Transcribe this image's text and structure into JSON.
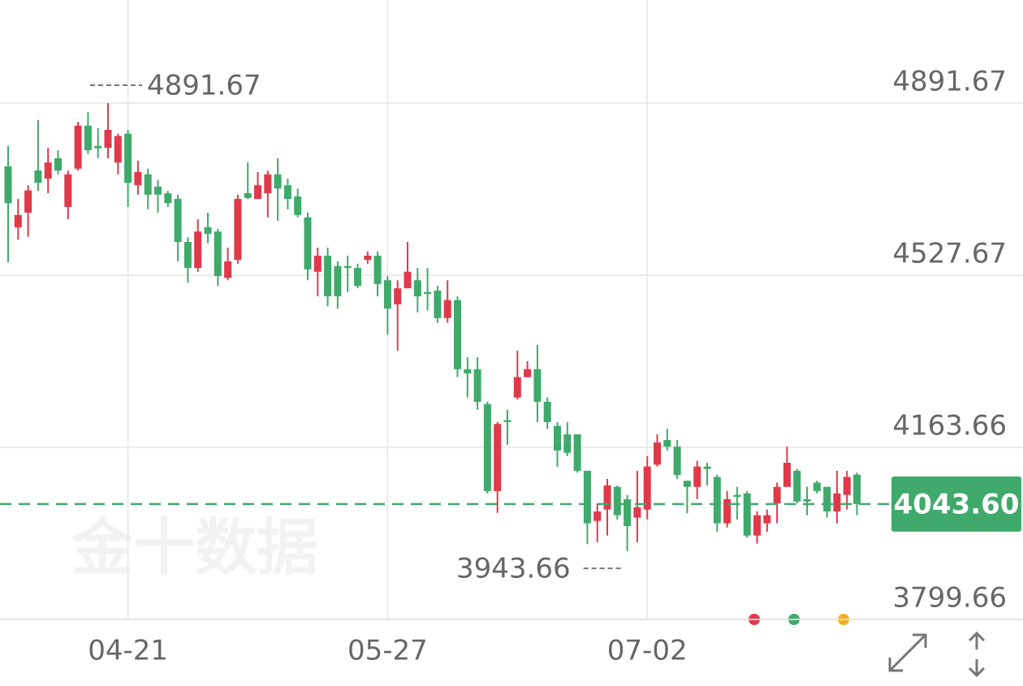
{
  "chart_data": {
    "type": "candlestick",
    "watermark": "金十数据",
    "categories": [
      null,
      null,
      null,
      null,
      null,
      null,
      null,
      null,
      null,
      null,
      null,
      null,
      "04-21",
      null,
      null,
      null,
      null,
      null,
      null,
      null,
      null,
      null,
      null,
      null,
      null,
      null,
      null,
      null,
      null,
      null,
      null,
      null,
      null,
      null,
      null,
      null,
      null,
      null,
      "05-27",
      null,
      null,
      null,
      null,
      null,
      null,
      null,
      null,
      null,
      null,
      null,
      null,
      null,
      null,
      null,
      null,
      null,
      null,
      null,
      null,
      null,
      null,
      null,
      null,
      null,
      "07-02",
      null,
      null,
      null,
      null,
      null,
      null,
      null,
      null,
      null,
      null,
      null,
      null,
      null,
      null,
      null,
      null,
      null,
      null,
      null,
      null,
      null
    ],
    "open": [
      4758,
      4629,
      4660,
      4749,
      4732,
      4775,
      4672,
      4753,
      4844,
      4801,
      4797,
      4766,
      4827,
      4718,
      4741,
      4715,
      4701,
      4689,
      4598,
      4543,
      4629,
      4620,
      4522,
      4560,
      4701,
      4689,
      4701,
      4741,
      4718,
      4694,
      4650,
      4535,
      4569,
      4547,
      4547,
      4543,
      4560,
      4569,
      4517,
      4466,
      4500,
      4517,
      4492,
      4495,
      4437,
      4475,
      4329,
      4329,
      4255,
      4071,
      4221,
      4269,
      4312,
      4329,
      4260,
      4209,
      4191,
      4191,
      4114,
      4008,
      4032,
      4080,
      4054,
      4015,
      4032,
      4127,
      4179,
      4165,
      4093,
      4080,
      4123,
      4101,
      4003,
      4063,
      4066,
      3977,
      4003,
      4045,
      4080,
      4114,
      4054,
      4089,
      4080,
      4028,
      4063,
      4106
    ],
    "high": [
      4801,
      4689,
      4718,
      4856,
      4797,
      4792,
      4749,
      4852,
      4873,
      4839,
      4891.67,
      4827,
      4835,
      4770,
      4753,
      4729,
      4706,
      4698,
      4608,
      4646,
      4660,
      4626,
      4586,
      4698,
      4766,
      4746,
      4749,
      4775,
      4732,
      4711,
      4660,
      4586,
      4586,
      4557,
      4569,
      4552,
      4578,
      4578,
      4526,
      4517,
      4598,
      4543,
      4543,
      4505,
      4517,
      4483,
      4354,
      4354,
      4260,
      4217,
      4243,
      4368,
      4346,
      4380,
      4269,
      4217,
      4217,
      4191,
      4114,
      4045,
      4097,
      4083,
      4063,
      4114,
      4145,
      4191,
      4203,
      4179,
      4093,
      4135,
      4131,
      4106,
      4071,
      4080,
      4071,
      4028,
      4032,
      4089,
      4165,
      4118,
      4080,
      4093,
      4080,
      4114,
      4114,
      4110
    ],
    "low": [
      4555,
      4603,
      4609,
      4706,
      4701,
      4741,
      4646,
      4749,
      4784,
      4775,
      4775,
      4741,
      4672,
      4698,
      4667,
      4660,
      4672,
      4557,
      4512,
      4535,
      4595,
      4505,
      4517,
      4552,
      4689,
      4689,
      4650,
      4643,
      4667,
      4650,
      4517,
      4483,
      4462,
      4457,
      4492,
      4500,
      4552,
      4483,
      4402,
      4368,
      4500,
      4449,
      4453,
      4427,
      4427,
      4312,
      4269,
      4243,
      4066,
      4025,
      4169,
      4265,
      4312,
      4217,
      4203,
      4123,
      4145,
      4110,
      3959,
      3963,
      3977,
      4011,
      3943.66,
      3963,
      4011,
      4123,
      4157,
      4097,
      4024,
      4054,
      4083,
      3985,
      3994,
      4011,
      3973,
      3960,
      3985,
      4003,
      4080,
      4045,
      4020,
      4066,
      4015,
      4003,
      4032,
      4020
    ],
    "close": [
      4680,
      4655,
      4707,
      4723,
      4766,
      4749,
      4741,
      4844,
      4792,
      4796,
      4835,
      4822,
      4723,
      4746,
      4698,
      4698,
      4680,
      4598,
      4543,
      4620,
      4615,
      4526,
      4557,
      4689,
      4691,
      4718,
      4741,
      4711,
      4689,
      4655,
      4540,
      4569,
      4483,
      4483,
      4543,
      4505,
      4569,
      4509,
      4457,
      4500,
      4535,
      4483,
      4488,
      4437,
      4475,
      4329,
      4320,
      4260,
      4071,
      4213,
      4217,
      4312,
      4329,
      4260,
      4217,
      4157,
      4152,
      4114,
      4003,
      4028,
      4083,
      4020,
      3997,
      4037,
      4123,
      4174,
      4165,
      4105,
      4080,
      4123,
      4118,
      4003,
      4054,
      4059,
      3977,
      4020,
      4020,
      4080,
      4131,
      4049,
      4049,
      4071,
      4028,
      4066,
      4101,
      4043.6
    ],
    "up_color": "#e0394a",
    "down_color": "#3faa6b",
    "last_price": {
      "value": 4043.6,
      "label": "4043.60"
    },
    "ylim": [
      3799.66,
      5109.7
    ],
    "yticks": [
      3799.66,
      4163.66,
      4527.67,
      4891.67
    ],
    "grid": true
  }
}
